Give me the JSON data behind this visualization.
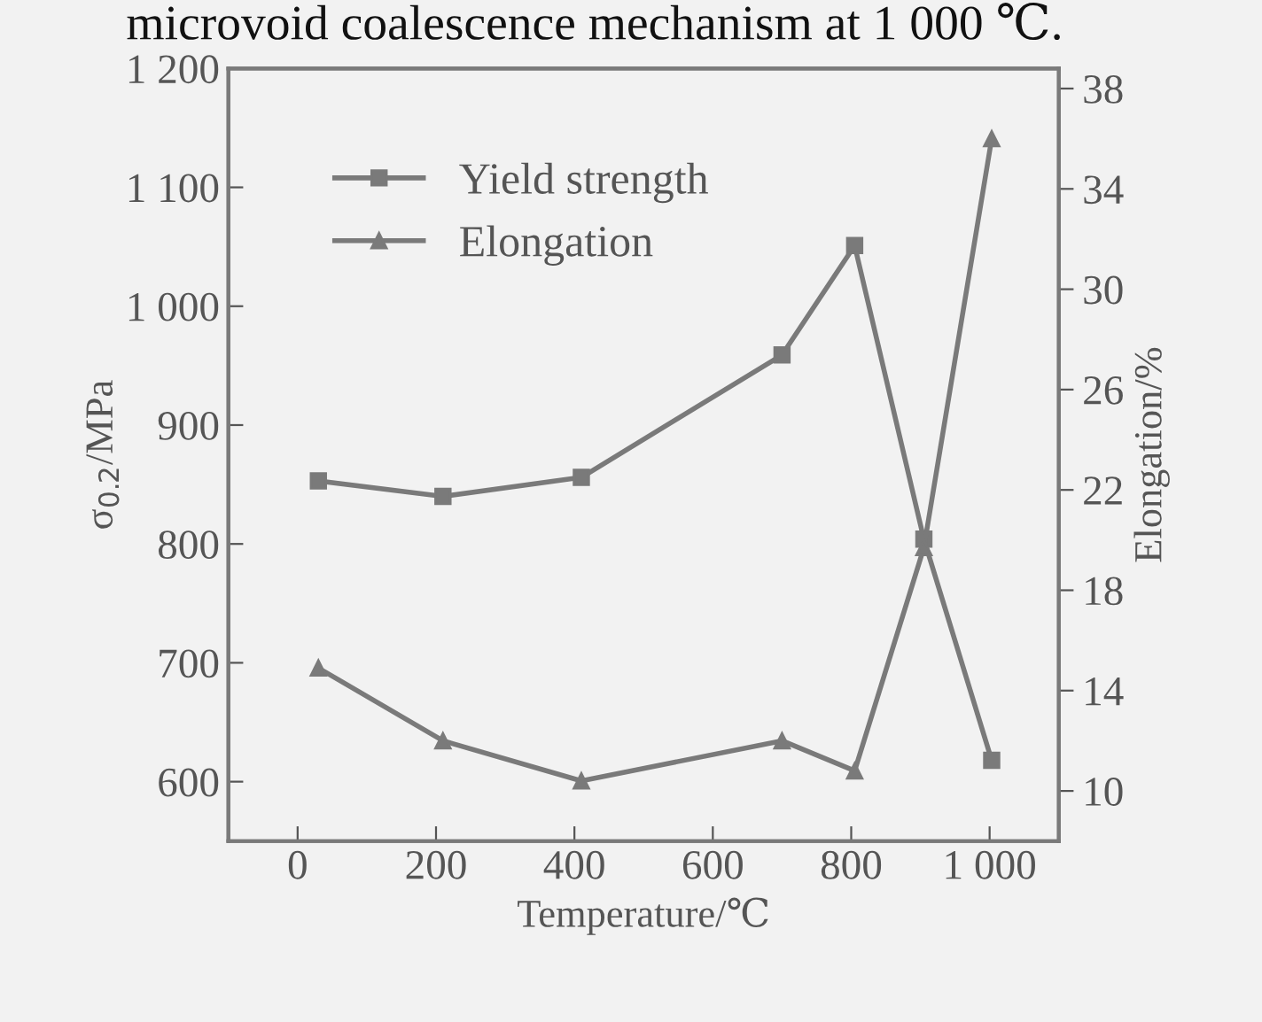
{
  "chart_data": {
    "type": "line",
    "x": [
      30,
      210,
      410,
      700,
      805,
      905,
      1003
    ],
    "xlabel": "Temperature/℃",
    "ylabel": "σ$_{0.2}$/MPa",
    "y2label": "Elongation/%",
    "series": [
      {
        "name": "Yield strength",
        "color": "#7a7a7a",
        "marker": "square",
        "values": [
          853,
          840,
          856,
          959,
          1051,
          804,
          618
        ]
      },
      {
        "name": "Elongation",
        "color": "#7a7a7a",
        "marker": "triangle",
        "axis": "y2",
        "values": [
          14.9,
          12.0,
          10.4,
          12.0,
          10.8,
          19.7,
          36.0
        ]
      }
    ],
    "xlim": [
      -100,
      1100
    ],
    "xticks": [
      0,
      200,
      400,
      600,
      800,
      {
        "value": 1000,
        "label": "1 000"
      }
    ],
    "ylim": [
      550,
      1200
    ],
    "yticks": [
      600,
      700,
      800,
      900,
      {
        "value": 1000,
        "label": "1 000"
      },
      {
        "value": 1100,
        "label": "1 100"
      },
      {
        "value": 1200,
        "label": "1 200"
      }
    ],
    "y2lim": [
      8,
      38.8
    ],
    "y2ticks": [
      10,
      14,
      18,
      22,
      26,
      30,
      34,
      38
    ],
    "legend": "top left",
    "grid": false,
    "line_style": "solid",
    "annotations": [
      "microvoid coalescence mechanism at 1 000 ℃."
    ]
  }
}
